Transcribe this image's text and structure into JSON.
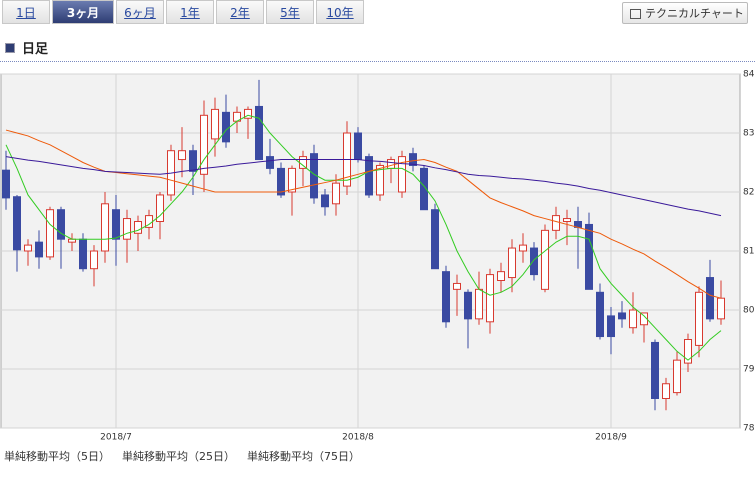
{
  "tabs": [
    "1日",
    "3ヶ月",
    "6ヶ月",
    "1年",
    "2年",
    "5年",
    "10年"
  ],
  "button": "テクニカルチャート",
  "section_title": "日足",
  "chart_data": {
    "type": "candlestick",
    "categories": [
      null,
      null,
      null,
      null,
      null,
      null,
      null,
      null,
      null,
      null,
      "2018/7",
      null,
      null,
      null,
      null,
      null,
      null,
      null,
      null,
      null,
      null,
      null,
      null,
      null,
      null,
      null,
      null,
      null,
      null,
      null,
      null,
      null,
      "2018/8",
      null,
      null,
      null,
      null,
      null,
      null,
      null,
      null,
      null,
      null,
      null,
      null,
      null,
      null,
      null,
      null,
      null,
      null,
      null,
      null,
      null,
      null,
      "2018/9",
      null,
      null,
      null,
      null,
      null,
      null,
      null,
      null,
      null,
      null
    ],
    "open": [
      82.37,
      81.92,
      81.0,
      81.15,
      80.9,
      81.7,
      81.15,
      81.2,
      80.7,
      81.0,
      81.7,
      81.2,
      81.3,
      81.4,
      81.5,
      81.95,
      82.55,
      82.7,
      82.3,
      82.9,
      83.35,
      83.2,
      83.25,
      83.45,
      82.6,
      82.4,
      82.0,
      82.4,
      82.65,
      81.95,
      81.8,
      82.1,
      83.0,
      82.6,
      81.95,
      82.4,
      82.0,
      82.65,
      82.4,
      81.7,
      80.65,
      80.35,
      80.3,
      79.85,
      79.8,
      80.5,
      80.55,
      81.0,
      81.05,
      80.35,
      81.35,
      81.5,
      81.5,
      81.45,
      80.3,
      79.9,
      79.95,
      79.7,
      79.75,
      79.45,
      78.5,
      78.6,
      79.1,
      79.4,
      80.55,
      79.85
    ],
    "high": [
      82.7,
      81.95,
      81.2,
      81.35,
      81.75,
      81.75,
      81.3,
      81.3,
      81.1,
      82.0,
      81.95,
      81.7,
      81.6,
      81.7,
      82.0,
      82.8,
      83.1,
      82.8,
      83.55,
      83.6,
      83.65,
      83.45,
      83.45,
      83.9,
      82.9,
      82.5,
      82.45,
      82.7,
      82.8,
      82.05,
      82.3,
      83.2,
      83.1,
      82.65,
      82.5,
      82.6,
      82.7,
      82.75,
      82.45,
      81.8,
      80.75,
      80.6,
      80.35,
      80.65,
      80.7,
      80.8,
      81.2,
      81.3,
      81.15,
      81.45,
      81.75,
      81.7,
      81.75,
      81.65,
      80.45,
      80.05,
      80.15,
      80.3,
      79.95,
      79.5,
      78.85,
      79.3,
      79.6,
      80.4,
      80.85,
      80.5
    ],
    "low": [
      81.7,
      80.65,
      80.75,
      80.7,
      80.85,
      80.7,
      81.0,
      80.65,
      80.4,
      80.8,
      80.75,
      80.8,
      81.0,
      81.2,
      81.2,
      81.85,
      82.25,
      81.95,
      82.0,
      82.6,
      82.75,
      83.0,
      82.9,
      82.55,
      82.3,
      81.9,
      81.6,
      82.1,
      81.8,
      81.6,
      81.6,
      81.95,
      82.5,
      81.9,
      81.85,
      82.15,
      81.9,
      82.35,
      81.7,
      80.7,
      79.7,
      79.9,
      79.35,
      79.75,
      79.6,
      80.3,
      80.3,
      80.8,
      80.5,
      80.3,
      81.2,
      81.1,
      80.7,
      80.4,
      79.5,
      79.25,
      79.7,
      79.6,
      79.45,
      78.3,
      78.3,
      78.55,
      78.95,
      79.2,
      79.8,
      79.75
    ],
    "close": [
      81.9,
      81.02,
      81.1,
      80.9,
      81.7,
      81.2,
      81.2,
      80.7,
      81.0,
      81.8,
      81.2,
      81.55,
      81.5,
      81.6,
      81.95,
      82.7,
      82.7,
      82.35,
      83.3,
      83.4,
      82.85,
      83.35,
      83.4,
      82.55,
      82.4,
      81.95,
      82.4,
      82.6,
      81.9,
      81.75,
      82.15,
      83.0,
      82.55,
      81.95,
      82.45,
      82.55,
      82.6,
      82.45,
      81.7,
      80.7,
      79.8,
      80.45,
      79.85,
      80.35,
      80.6,
      80.65,
      81.05,
      81.1,
      80.6,
      81.35,
      81.6,
      81.55,
      81.4,
      80.35,
      79.55,
      79.55,
      79.85,
      80.0,
      79.95,
      78.5,
      78.75,
      79.15,
      79.5,
      80.3,
      79.85,
      80.2
    ],
    "up_color": "#d83a30",
    "down_color": "#3a4aa2",
    "series": [
      {
        "name": "単純移動平均（5日）",
        "color": "#33cc22",
        "values": [
          82.8,
          82.4,
          81.95,
          81.7,
          81.45,
          81.3,
          81.2,
          81.2,
          81.2,
          81.2,
          81.22,
          81.3,
          81.35,
          81.45,
          81.6,
          81.8,
          82.0,
          82.25,
          82.55,
          82.8,
          83.05,
          83.2,
          83.3,
          83.25,
          83.0,
          82.8,
          82.6,
          82.45,
          82.3,
          82.2,
          82.2,
          82.2,
          82.25,
          82.35,
          82.38,
          82.4,
          82.4,
          82.3,
          82.1,
          81.85,
          81.45,
          81.0,
          80.65,
          80.35,
          80.25,
          80.3,
          80.4,
          80.6,
          80.85,
          81.0,
          81.15,
          81.25,
          81.25,
          81.2,
          80.7,
          80.45,
          80.25,
          80.05,
          79.9,
          79.7,
          79.5,
          79.3,
          79.15,
          79.3,
          79.5,
          79.65
        ]
      },
      {
        "name": "単純移動平均（25日）",
        "color": "#ee5a0a",
        "values": [
          83.05,
          83.0,
          82.95,
          82.87,
          82.8,
          82.7,
          82.6,
          82.5,
          82.42,
          82.35,
          82.33,
          82.31,
          82.29,
          82.27,
          82.25,
          82.2,
          82.15,
          82.1,
          82.05,
          82.0,
          82.0,
          82.0,
          82.0,
          82.0,
          82.0,
          82.0,
          82.04,
          82.08,
          82.12,
          82.16,
          82.2,
          82.25,
          82.3,
          82.35,
          82.4,
          82.45,
          82.5,
          82.53,
          82.55,
          82.5,
          82.42,
          82.35,
          82.2,
          82.05,
          81.9,
          81.82,
          81.75,
          81.68,
          81.6,
          81.55,
          81.5,
          81.45,
          81.4,
          81.35,
          81.3,
          81.2,
          81.12,
          81.03,
          80.95,
          80.83,
          80.72,
          80.6,
          80.48,
          80.37,
          80.25,
          80.2
        ]
      },
      {
        "name": "単純移動平均（75日）",
        "color": "#3a1a9a",
        "values": [
          82.6,
          82.57,
          82.54,
          82.52,
          82.49,
          82.46,
          82.43,
          82.4,
          82.38,
          82.35,
          82.34,
          82.33,
          82.32,
          82.31,
          82.3,
          82.32,
          82.35,
          82.37,
          82.4,
          82.42,
          82.44,
          82.47,
          82.49,
          82.51,
          82.53,
          82.55,
          82.55,
          82.55,
          82.55,
          82.55,
          82.55,
          82.55,
          82.55,
          82.53,
          82.52,
          82.5,
          82.48,
          82.47,
          82.45,
          82.41,
          82.38,
          82.34,
          82.3,
          82.28,
          82.27,
          82.25,
          82.23,
          82.22,
          82.2,
          82.18,
          82.15,
          82.13,
          82.1,
          82.06,
          82.03,
          81.99,
          81.95,
          81.91,
          81.87,
          81.83,
          81.79,
          81.75,
          81.71,
          81.68,
          81.64,
          81.6
        ]
      }
    ],
    "ylim": [
      78,
      84
    ],
    "yticks": [
      78,
      79,
      80,
      81,
      82,
      83,
      84
    ],
    "grid": true
  }
}
